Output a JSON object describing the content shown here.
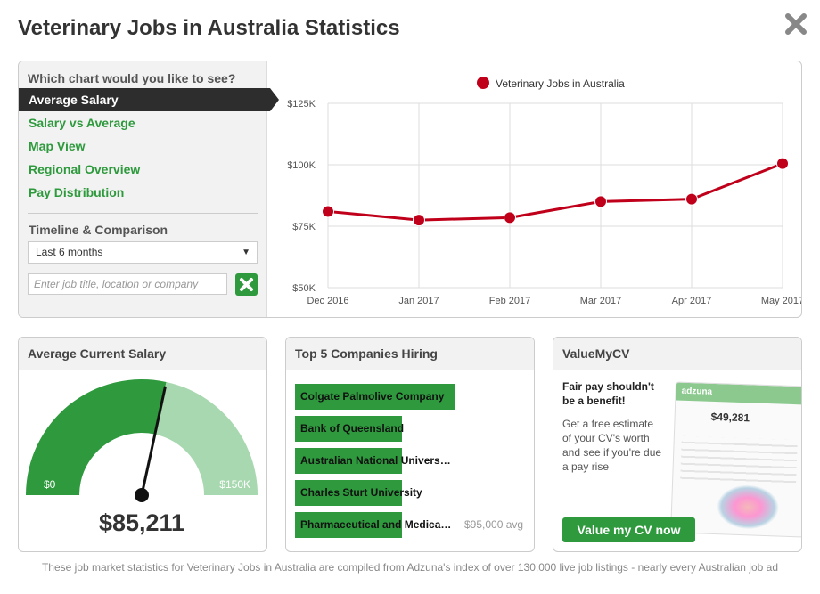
{
  "page": {
    "title": "Veterinary Jobs in Australia Statistics",
    "footer": "These job market statistics for Veterinary Jobs in Australia are compiled from Adzuna's index of over 130,000 live job listings - nearly every Australian job ad"
  },
  "sidebar": {
    "question": "Which chart would you like to see?",
    "items": [
      {
        "label": "Average Salary"
      },
      {
        "label": "Salary vs Average"
      },
      {
        "label": "Map View"
      },
      {
        "label": "Regional Overview"
      },
      {
        "label": "Pay Distribution"
      }
    ],
    "timeline_label": "Timeline & Comparison",
    "timeline_value": "Last 6 months",
    "compare_placeholder": "Enter job title, location or company"
  },
  "chart_data": {
    "type": "line",
    "categories": [
      "Dec 2016",
      "Jan 2017",
      "Feb 2017",
      "Mar 2017",
      "Apr 2017",
      "May 2017"
    ],
    "series": [
      {
        "name": "Veterinary Jobs in Australia",
        "values": [
          81000,
          77500,
          78500,
          85000,
          86000,
          100500
        ],
        "color": "#c0001a"
      }
    ],
    "ylim": [
      50000,
      125000
    ],
    "yticks": [
      "$50K",
      "$75K",
      "$100K",
      "$125K"
    ],
    "grid": true,
    "legend": "top"
  },
  "salary_card": {
    "title": "Average Current Salary",
    "value": "$85,211",
    "min_label": "$0",
    "max_label": "$150K",
    "fraction": 0.568
  },
  "companies_card": {
    "title": "Top 5 Companies Hiring",
    "companies": [
      {
        "name": "Colgate Palmolive Company",
        "bar": 1.0
      },
      {
        "name": "Bank of Queensland",
        "bar": 0.667
      },
      {
        "name": "Australian National Univers…",
        "bar": 0.667
      },
      {
        "name": "Charles Sturt University",
        "bar": 0.667
      },
      {
        "name": "Pharmaceutical and Medica…",
        "bar": 0.667
      }
    ],
    "last_avg": "$95,000 avg"
  },
  "cv_card": {
    "title": "ValueMyCV",
    "heading": "Fair pay shouldn't be a benefit!",
    "text": "Get a free estimate of your CV's worth and see if you're due a pay rise",
    "button": "Value my CV now",
    "preview_logo": "adzuna",
    "preview_value": "$49,281"
  },
  "colors": {
    "accent": "#2e9a3d",
    "series": "#c0001a",
    "gauge_light": "#a8d8b0"
  }
}
